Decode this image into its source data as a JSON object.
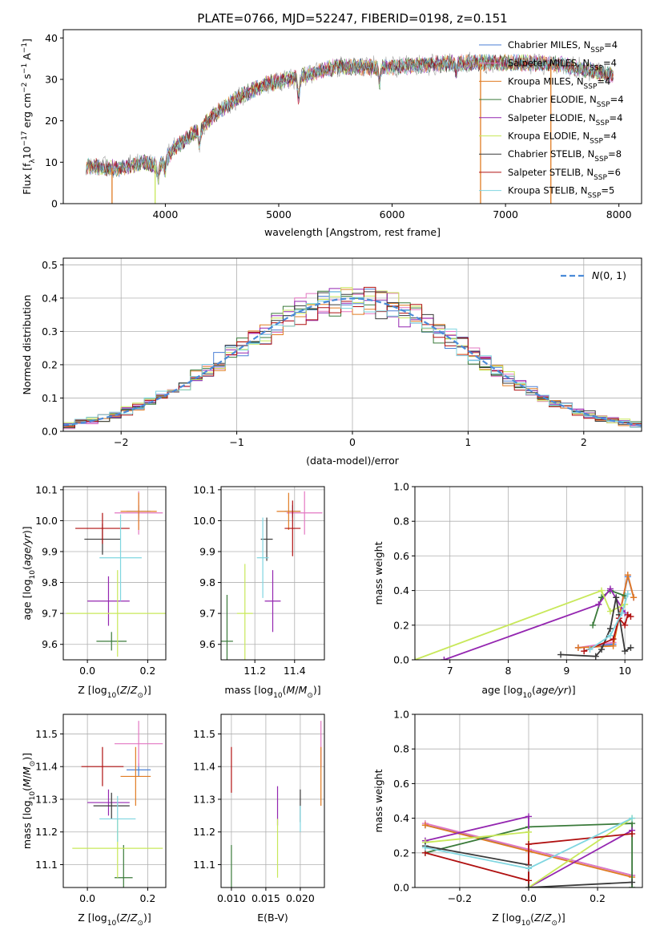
{
  "title": "PLATE=0766, MJD=52247, FIBERID=0198, z=0.151",
  "colors": {
    "chabrier_miles": "#4a7fd6",
    "salpeter_miles": "#e377c2",
    "kroupa_miles": "#e07b22",
    "chabrier_elodie": "#3a7a3a",
    "salpeter_elodie": "#9426b0",
    "kroupa_elodie": "#c8e85a",
    "chabrier_stelib": "#3a3a3a",
    "salpeter_stelib": "#b01010",
    "kroupa_stelib": "#7fd6e0",
    "data": "#9a9a9a",
    "gaussian": "#4a8ad8"
  },
  "chart_data": [
    {
      "id": "spectrum",
      "type": "line",
      "xlabel": "wavelength [Angstrom, rest frame]",
      "ylabel": "Flux [f_λ10^-17 erg cm^-2 s^-1 A^-1]",
      "xlim": [
        3100,
        8200
      ],
      "ylim": [
        0,
        42
      ],
      "xticks": [
        4000,
        5000,
        6000,
        7000,
        8000
      ],
      "yticks": [
        0,
        10,
        20,
        30,
        40
      ],
      "grid": false,
      "legend_placement": "right",
      "data_range": [
        3300,
        7950
      ],
      "continuum": [
        [
          3300,
          9
        ],
        [
          3600,
          8.5
        ],
        [
          3800,
          10
        ],
        [
          3950,
          9
        ],
        [
          4100,
          14
        ],
        [
          4300,
          18
        ],
        [
          4500,
          23
        ],
        [
          4700,
          26.5
        ],
        [
          4900,
          29
        ],
        [
          5100,
          30
        ],
        [
          5300,
          31.5
        ],
        [
          5500,
          33
        ],
        [
          5700,
          33
        ],
        [
          6000,
          33
        ],
        [
          6300,
          33.5
        ],
        [
          6600,
          34
        ],
        [
          6900,
          34
        ],
        [
          7200,
          34
        ],
        [
          7500,
          33.5
        ],
        [
          7950,
          31
        ]
      ],
      "absorption_features": [
        [
          3934,
          -3
        ],
        [
          4000,
          -2.5
        ],
        [
          4300,
          -4
        ],
        [
          5175,
          -5
        ],
        [
          5890,
          -4
        ],
        [
          6563,
          -2
        ]
      ],
      "series": [
        {
          "name": "Chabrier MILES, N_SSP=4",
          "label": "Chabrier MILES, N",
          "sub": "SSP",
          "value": "=4",
          "color_key": "chabrier_miles"
        },
        {
          "name": "Salpeter MILES, N_SSP=4",
          "label": "Salpeter MILES, N",
          "sub": "SSP",
          "value": "=4",
          "color_key": "salpeter_miles"
        },
        {
          "name": "Kroupa MILES, N_SSP=4",
          "label": "Kroupa MILES, N",
          "sub": "SSP",
          "value": "=4",
          "color_key": "kroupa_miles"
        },
        {
          "name": "Chabrier ELODIE, N_SSP=4",
          "label": "Chabrier ELODIE, N",
          "sub": "SSP",
          "value": "=4",
          "color_key": "chabrier_elodie"
        },
        {
          "name": "Salpeter ELODIE, N_SSP=4",
          "label": "Salpeter ELODIE, N",
          "sub": "SSP",
          "value": "=4",
          "color_key": "salpeter_elodie"
        },
        {
          "name": "Kroupa ELODIE, N_SSP=4",
          "label": "Kroupa ELODIE, N",
          "sub": "SSP",
          "value": "=4",
          "color_key": "kroupa_elodie"
        },
        {
          "name": "Chabrier STELIB, N_SSP=8",
          "label": "Chabrier STELIB, N",
          "sub": "SSP",
          "value": "=8",
          "color_key": "chabrier_stelib"
        },
        {
          "name": "Salpeter STELIB, N_SSP=6",
          "label": "Salpeter STELIB, N",
          "sub": "SSP",
          "value": "=6",
          "color_key": "salpeter_stelib"
        },
        {
          "name": "Kroupa STELIB, N_SSP=5",
          "label": "Kroupa STELIB, N",
          "sub": "SSP",
          "value": "=5",
          "color_key": "kroupa_stelib"
        }
      ],
      "edge_drops": [
        {
          "color_key": "kroupa_miles",
          "x": 3530
        },
        {
          "color_key": "kroupa_elodie",
          "x": 3910
        },
        {
          "color_key": "kroupa_miles",
          "x": 6780
        },
        {
          "color_key": "kroupa_miles",
          "x": 7400
        }
      ]
    },
    {
      "id": "residuals",
      "type": "line",
      "xlabel": "(data-model)/error",
      "ylabel": "Normed distribution",
      "xlim": [
        -2.5,
        2.5
      ],
      "ylim": [
        0,
        0.52
      ],
      "xticks": [
        -2,
        -1,
        0,
        1,
        2
      ],
      "yticks": [
        0.0,
        0.1,
        0.2,
        0.3,
        0.4,
        0.5
      ],
      "grid": true,
      "legend": "N(0, 1)",
      "legend_placement": "top-right",
      "bin_width": 0.1
    },
    {
      "id": "z_age",
      "type": "scatter",
      "xlabel": "Z [log10(Z/Z⊙)]",
      "ylabel": "age  [log10(age/yr)]",
      "xlim": [
        -0.08,
        0.26
      ],
      "ylim": [
        9.55,
        10.11
      ],
      "xticks": [
        0.0,
        0.2
      ],
      "yticks": [
        9.6,
        9.7,
        9.8,
        9.9,
        10.0,
        10.1
      ],
      "grid": true,
      "points": [
        {
          "color_key": "chabrier_miles",
          "x": 0.17,
          "xerr": 0.04,
          "y": 10.03,
          "yerr": 0.02
        },
        {
          "color_key": "salpeter_miles",
          "x": 0.17,
          "xerr": 0.08,
          "y": 10.025,
          "yerr": 0.07
        },
        {
          "color_key": "kroupa_miles",
          "x": 0.17,
          "xerr": 0.06,
          "y": 10.03,
          "yerr": 0.06
        },
        {
          "color_key": "chabrier_elodie",
          "x": 0.08,
          "xerr": 0.05,
          "y": 9.61,
          "yerr": 0.03
        },
        {
          "color_key": "salpeter_elodie",
          "x": 0.07,
          "xerr": 0.07,
          "y": 9.74,
          "yerr": 0.08
        },
        {
          "color_key": "kroupa_elodie",
          "x": 0.1,
          "xerr": 0.17,
          "y": 9.7,
          "yerr": 0.14
        },
        {
          "color_key": "chabrier_stelib",
          "x": 0.05,
          "xerr": 0.06,
          "y": 9.94,
          "yerr": 0.05
        },
        {
          "color_key": "salpeter_stelib",
          "x": 0.05,
          "xerr": 0.09,
          "y": 9.975,
          "yerr": 0.05
        },
        {
          "color_key": "kroupa_stelib",
          "x": 0.11,
          "xerr": 0.07,
          "y": 9.88,
          "yerr": 0.14
        }
      ]
    },
    {
      "id": "mass_age",
      "type": "scatter",
      "xlabel": "mass [log10(M/M⊙)]",
      "ylabel": "",
      "xlim": [
        11.03,
        11.55
      ],
      "ylim": [
        9.55,
        10.11
      ],
      "xticks": [
        11.2,
        11.4
      ],
      "yticks": [
        9.6,
        9.7,
        9.8,
        9.9,
        10.0,
        10.1
      ],
      "grid": true,
      "points": [
        {
          "color_key": "chabrier_miles",
          "x": 11.39,
          "xerr": 0.04,
          "y": 10.03,
          "yerr": 0.02
        },
        {
          "color_key": "salpeter_miles",
          "x": 11.45,
          "xerr": 0.09,
          "y": 10.025,
          "yerr": 0.07
        },
        {
          "color_key": "kroupa_miles",
          "x": 11.37,
          "xerr": 0.06,
          "y": 10.03,
          "yerr": 0.06
        },
        {
          "color_key": "chabrier_elodie",
          "x": 11.06,
          "xerr": 0.03,
          "y": 9.61,
          "yerr": 0.15
        },
        {
          "color_key": "salpeter_elodie",
          "x": 11.29,
          "xerr": 0.04,
          "y": 9.74,
          "yerr": 0.1
        },
        {
          "color_key": "kroupa_elodie",
          "x": 11.15,
          "xerr": 0.04,
          "y": 9.7,
          "yerr": 0.16
        },
        {
          "color_key": "chabrier_stelib",
          "x": 11.26,
          "xerr": 0.03,
          "y": 9.94,
          "yerr": 0.07
        },
        {
          "color_key": "salpeter_stelib",
          "x": 11.39,
          "xerr": 0.04,
          "y": 9.975,
          "yerr": 0.09
        },
        {
          "color_key": "kroupa_stelib",
          "x": 11.24,
          "xerr": 0.03,
          "y": 9.88,
          "yerr": 0.13
        }
      ]
    },
    {
      "id": "age_weight",
      "type": "line",
      "xlabel": "age  [log10(age/yr)]",
      "ylabel": "mass weight",
      "xlim": [
        6.4,
        10.3
      ],
      "ylim": [
        0,
        1
      ],
      "xticks": [
        7,
        8,
        9,
        10
      ],
      "yticks": [
        0.0,
        0.2,
        0.4,
        0.6,
        0.8,
        1.0
      ],
      "grid": true,
      "series": [
        {
          "color_key": "chabrier_miles",
          "points": [
            [
              9.2,
              0.07
            ],
            [
              9.8,
              0.09
            ],
            [
              10.05,
              0.48
            ],
            [
              10.15,
              0.36
            ]
          ]
        },
        {
          "color_key": "salpeter_miles",
          "points": [
            [
              9.2,
              0.07
            ],
            [
              9.8,
              0.1
            ],
            [
              10.05,
              0.49
            ],
            [
              10.15,
              0.36
            ]
          ]
        },
        {
          "color_key": "kroupa_miles",
          "points": [
            [
              9.2,
              0.07
            ],
            [
              9.8,
              0.08
            ],
            [
              10.05,
              0.49
            ],
            [
              10.15,
              0.36
            ]
          ]
        },
        {
          "color_key": "chabrier_elodie",
          "points": [
            [
              9.45,
              0.2
            ],
            [
              9.6,
              0.36
            ],
            [
              9.75,
              0.4
            ],
            [
              10.0,
              0.37
            ]
          ]
        },
        {
          "color_key": "salpeter_elodie",
          "points": [
            [
              6.9,
              0.0
            ],
            [
              9.55,
              0.32
            ],
            [
              9.75,
              0.41
            ],
            [
              10.0,
              0.27
            ]
          ]
        },
        {
          "color_key": "kroupa_elodie",
          "points": [
            [
              6.4,
              0.0
            ],
            [
              9.6,
              0.4
            ],
            [
              9.75,
              0.28
            ],
            [
              10.0,
              0.32
            ]
          ]
        },
        {
          "color_key": "chabrier_stelib",
          "points": [
            [
              8.9,
              0.03
            ],
            [
              9.5,
              0.02
            ],
            [
              9.6,
              0.06
            ],
            [
              9.75,
              0.18
            ],
            [
              9.85,
              0.36
            ],
            [
              9.9,
              0.26
            ],
            [
              10.0,
              0.05
            ],
            [
              10.1,
              0.07
            ]
          ]
        },
        {
          "color_key": "salpeter_stelib",
          "points": [
            [
              9.3,
              0.05
            ],
            [
              9.8,
              0.12
            ],
            [
              9.9,
              0.24
            ],
            [
              10.0,
              0.2
            ],
            [
              10.05,
              0.26
            ],
            [
              10.1,
              0.25
            ]
          ]
        },
        {
          "color_key": "kroupa_stelib",
          "points": [
            [
              9.4,
              0.06
            ],
            [
              9.75,
              0.14
            ],
            [
              9.95,
              0.27
            ],
            [
              10.05,
              0.38
            ]
          ]
        }
      ]
    },
    {
      "id": "z_mass",
      "type": "scatter",
      "xlabel": "Z [log10(Z/Z⊙)]",
      "ylabel": "mass [log10(M/M⊙)]",
      "xlim": [
        -0.08,
        0.26
      ],
      "ylim": [
        11.03,
        11.56
      ],
      "xticks": [
        0.0,
        0.2
      ],
      "yticks": [
        11.1,
        11.2,
        11.3,
        11.4,
        11.5
      ],
      "grid": true,
      "points": [
        {
          "color_key": "chabrier_miles",
          "x": 0.17,
          "xerr": 0.04,
          "y": 11.39,
          "yerr": 0.02
        },
        {
          "color_key": "salpeter_miles",
          "x": 0.17,
          "xerr": 0.08,
          "y": 11.47,
          "yerr": 0.07
        },
        {
          "color_key": "kroupa_miles",
          "x": 0.16,
          "xerr": 0.05,
          "y": 11.37,
          "yerr": 0.09
        },
        {
          "color_key": "chabrier_elodie",
          "x": 0.12,
          "xerr": 0.03,
          "y": 11.06,
          "yerr": 0.1
        },
        {
          "color_key": "salpeter_elodie",
          "x": 0.07,
          "xerr": 0.07,
          "y": 11.29,
          "yerr": 0.04
        },
        {
          "color_key": "kroupa_elodie",
          "x": 0.1,
          "xerr": 0.15,
          "y": 11.15,
          "yerr": 0.09
        },
        {
          "color_key": "chabrier_stelib",
          "x": 0.08,
          "xerr": 0.06,
          "y": 11.28,
          "yerr": 0.04
        },
        {
          "color_key": "salpeter_stelib",
          "x": 0.05,
          "xerr": 0.07,
          "y": 11.4,
          "yerr": 0.06
        },
        {
          "color_key": "kroupa_stelib",
          "x": 0.1,
          "xerr": 0.06,
          "y": 11.24,
          "yerr": 0.07
        }
      ]
    },
    {
      "id": "ebv_mass",
      "type": "scatter",
      "xlabel": "E(B-V)",
      "ylabel": "",
      "xlim": [
        0.0085,
        0.0235
      ],
      "ylim": [
        11.03,
        11.56
      ],
      "xticks": [
        0.01,
        0.015,
        0.02
      ],
      "yticks": [
        11.1,
        11.2,
        11.3,
        11.4,
        11.5
      ],
      "grid": true,
      "points": [
        {
          "color_key": "chabrier_elodie",
          "x": 0.01,
          "xerr": 0,
          "y": 11.06,
          "yerr": 0.1
        },
        {
          "color_key": "salpeter_stelib",
          "x": 0.01,
          "xerr": 0,
          "y": 11.39,
          "yerr": 0.07
        },
        {
          "color_key": "salpeter_elodie",
          "x": 0.0167,
          "xerr": 0,
          "y": 11.28,
          "yerr": 0.06
        },
        {
          "color_key": "kroupa_elodie",
          "x": 0.0167,
          "xerr": 0,
          "y": 11.15,
          "yerr": 0.09
        },
        {
          "color_key": "chabrier_stelib",
          "x": 0.02,
          "xerr": 0,
          "y": 11.28,
          "yerr": 0.05
        },
        {
          "color_key": "kroupa_stelib",
          "x": 0.02,
          "xerr": 0,
          "y": 11.24,
          "yerr": 0.04
        },
        {
          "color_key": "salpeter_miles",
          "x": 0.023,
          "xerr": 0,
          "y": 11.47,
          "yerr": 0.07
        },
        {
          "color_key": "kroupa_miles",
          "x": 0.023,
          "xerr": 0,
          "y": 11.37,
          "yerr": 0.09
        }
      ]
    },
    {
      "id": "z_weight",
      "type": "line",
      "xlabel": "Z [log10(Z/Z⊙)]",
      "ylabel": "mass weight",
      "xlim": [
        -0.33,
        0.33
      ],
      "ylim": [
        0,
        1
      ],
      "xticks": [
        -0.2,
        0.0,
        0.2
      ],
      "yticks": [
        0.0,
        0.2,
        0.4,
        0.6,
        0.8,
        1.0
      ],
      "grid": true,
      "series": [
        {
          "color_key": "chabrier_miles",
          "points": [
            [
              -0.3,
              0.36
            ],
            [
              0.0,
              0.22
            ],
            [
              0.3,
              0.07
            ]
          ]
        },
        {
          "color_key": "salpeter_miles",
          "points": [
            [
              -0.3,
              0.37
            ],
            [
              0.0,
              0.22
            ],
            [
              0.3,
              0.07
            ]
          ]
        },
        {
          "color_key": "kroupa_miles",
          "points": [
            [
              -0.3,
              0.36
            ],
            [
              0.0,
              0.21
            ],
            [
              0.3,
              0.06
            ]
          ]
        },
        {
          "color_key": "chabrier_elodie",
          "points": [
            [
              -0.3,
              0.2
            ],
            [
              0.0,
              0.35
            ],
            [
              0.3,
              0.37
            ],
            [
              0.3,
              0.0
            ]
          ]
        },
        {
          "color_key": "salpeter_elodie",
          "points": [
            [
              -0.3,
              0.27
            ],
            [
              0.0,
              0.41
            ],
            [
              0.0,
              0.0
            ],
            [
              0.3,
              0.33
            ]
          ]
        },
        {
          "color_key": "kroupa_elodie",
          "points": [
            [
              -0.3,
              0.26
            ],
            [
              0.0,
              0.32
            ],
            [
              0.0,
              0.0
            ],
            [
              0.3,
              0.4
            ]
          ]
        },
        {
          "color_key": "chabrier_stelib",
          "points": [
            [
              -0.3,
              0.24
            ],
            [
              0.0,
              0.13
            ],
            [
              0.0,
              0.0
            ],
            [
              0.3,
              0.03
            ]
          ]
        },
        {
          "color_key": "salpeter_stelib",
          "points": [
            [
              -0.3,
              0.2
            ],
            [
              0.0,
              0.04
            ],
            [
              0.0,
              0.25
            ],
            [
              0.3,
              0.31
            ]
          ]
        },
        {
          "color_key": "kroupa_stelib",
          "points": [
            [
              -0.3,
              0.23
            ],
            [
              0.0,
              0.11
            ],
            [
              0.3,
              0.4
            ]
          ]
        }
      ]
    }
  ]
}
